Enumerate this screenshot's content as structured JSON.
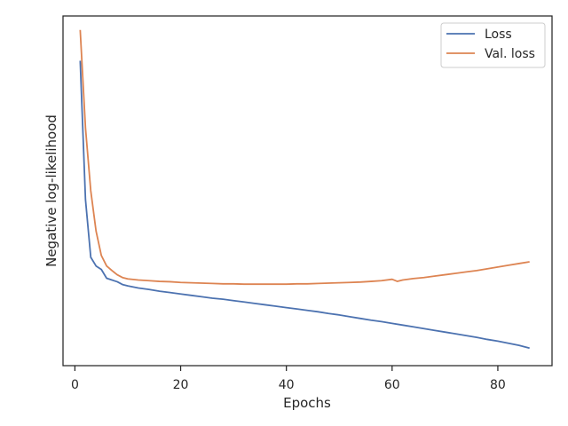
{
  "chart_data": {
    "type": "line",
    "xlabel": "Epochs",
    "ylabel": "Negative log-likelihood",
    "xlim": [
      -2.25,
      90.25
    ],
    "ylim": [
      0.0,
      1.0
    ],
    "x_ticks": [
      0,
      20,
      40,
      60,
      80
    ],
    "y_ticks_visible": false,
    "grid": false,
    "legend_position": "top-right",
    "series": [
      {
        "name": "Loss",
        "color": "#4c72b0",
        "x": [
          1,
          2,
          3,
          4,
          5,
          6,
          7,
          8,
          9,
          10,
          12,
          14,
          16,
          18,
          20,
          22,
          24,
          26,
          28,
          30,
          32,
          34,
          36,
          38,
          40,
          42,
          44,
          46,
          48,
          50,
          52,
          54,
          56,
          58,
          60,
          62,
          64,
          66,
          68,
          70,
          72,
          74,
          76,
          78,
          80,
          82,
          84,
          86
        ],
        "y": [
          0.872,
          0.475,
          0.31,
          0.285,
          0.275,
          0.25,
          0.245,
          0.24,
          0.232,
          0.228,
          0.222,
          0.218,
          0.213,
          0.209,
          0.205,
          0.201,
          0.197,
          0.193,
          0.19,
          0.186,
          0.182,
          0.178,
          0.174,
          0.17,
          0.166,
          0.162,
          0.158,
          0.154,
          0.149,
          0.145,
          0.14,
          0.135,
          0.13,
          0.126,
          0.121,
          0.116,
          0.111,
          0.106,
          0.101,
          0.096,
          0.091,
          0.086,
          0.081,
          0.075,
          0.07,
          0.064,
          0.058,
          0.05
        ]
      },
      {
        "name": "Val. loss",
        "color": "#dd8452",
        "x": [
          1,
          2,
          3,
          4,
          5,
          6,
          7,
          8,
          9,
          10,
          12,
          14,
          16,
          18,
          20,
          22,
          24,
          26,
          28,
          30,
          32,
          34,
          36,
          38,
          40,
          42,
          44,
          46,
          48,
          50,
          52,
          54,
          56,
          58,
          60,
          61,
          62,
          64,
          66,
          68,
          70,
          72,
          74,
          76,
          78,
          80,
          82,
          84,
          86
        ],
        "y": [
          0.96,
          0.68,
          0.5,
          0.385,
          0.315,
          0.285,
          0.272,
          0.26,
          0.252,
          0.248,
          0.245,
          0.243,
          0.241,
          0.24,
          0.238,
          0.237,
          0.236,
          0.235,
          0.234,
          0.234,
          0.233,
          0.233,
          0.233,
          0.233,
          0.233,
          0.234,
          0.234,
          0.235,
          0.236,
          0.237,
          0.238,
          0.239,
          0.241,
          0.243,
          0.247,
          0.241,
          0.245,
          0.249,
          0.252,
          0.256,
          0.26,
          0.264,
          0.268,
          0.272,
          0.277,
          0.282,
          0.287,
          0.292,
          0.297
        ]
      }
    ]
  }
}
